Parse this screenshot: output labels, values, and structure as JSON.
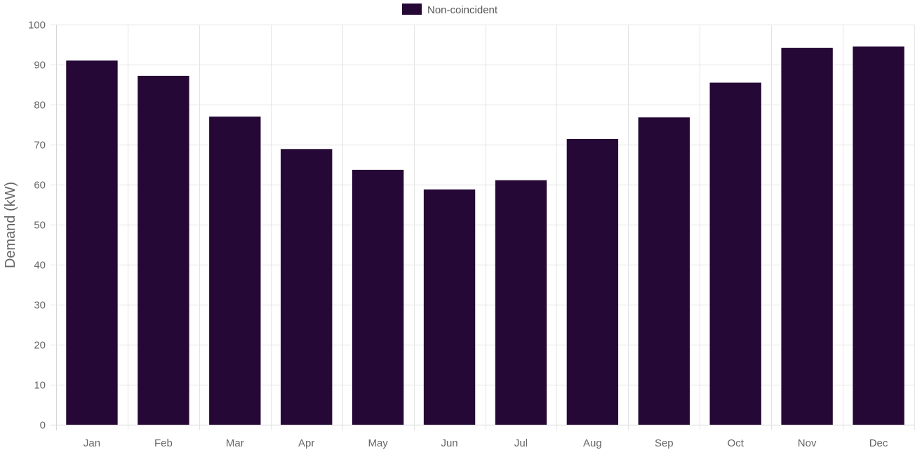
{
  "chart_data": {
    "type": "bar",
    "categories": [
      "Jan",
      "Feb",
      "Mar",
      "Apr",
      "May",
      "Jun",
      "Jul",
      "Aug",
      "Sep",
      "Oct",
      "Nov",
      "Dec"
    ],
    "series": [
      {
        "name": "Non-coincident",
        "color": "#250835",
        "values": [
          91.0,
          87.2,
          77.0,
          68.9,
          63.7,
          58.8,
          61.1,
          71.4,
          76.8,
          85.5,
          94.2,
          94.5
        ]
      }
    ],
    "title": "",
    "xlabel": "",
    "ylabel": "Demand (kW)",
    "ylim": [
      0,
      100
    ],
    "yticks": [
      0,
      10,
      20,
      30,
      40,
      50,
      60,
      70,
      80,
      90,
      100
    ],
    "grid": true,
    "legend_position": "top-center"
  }
}
